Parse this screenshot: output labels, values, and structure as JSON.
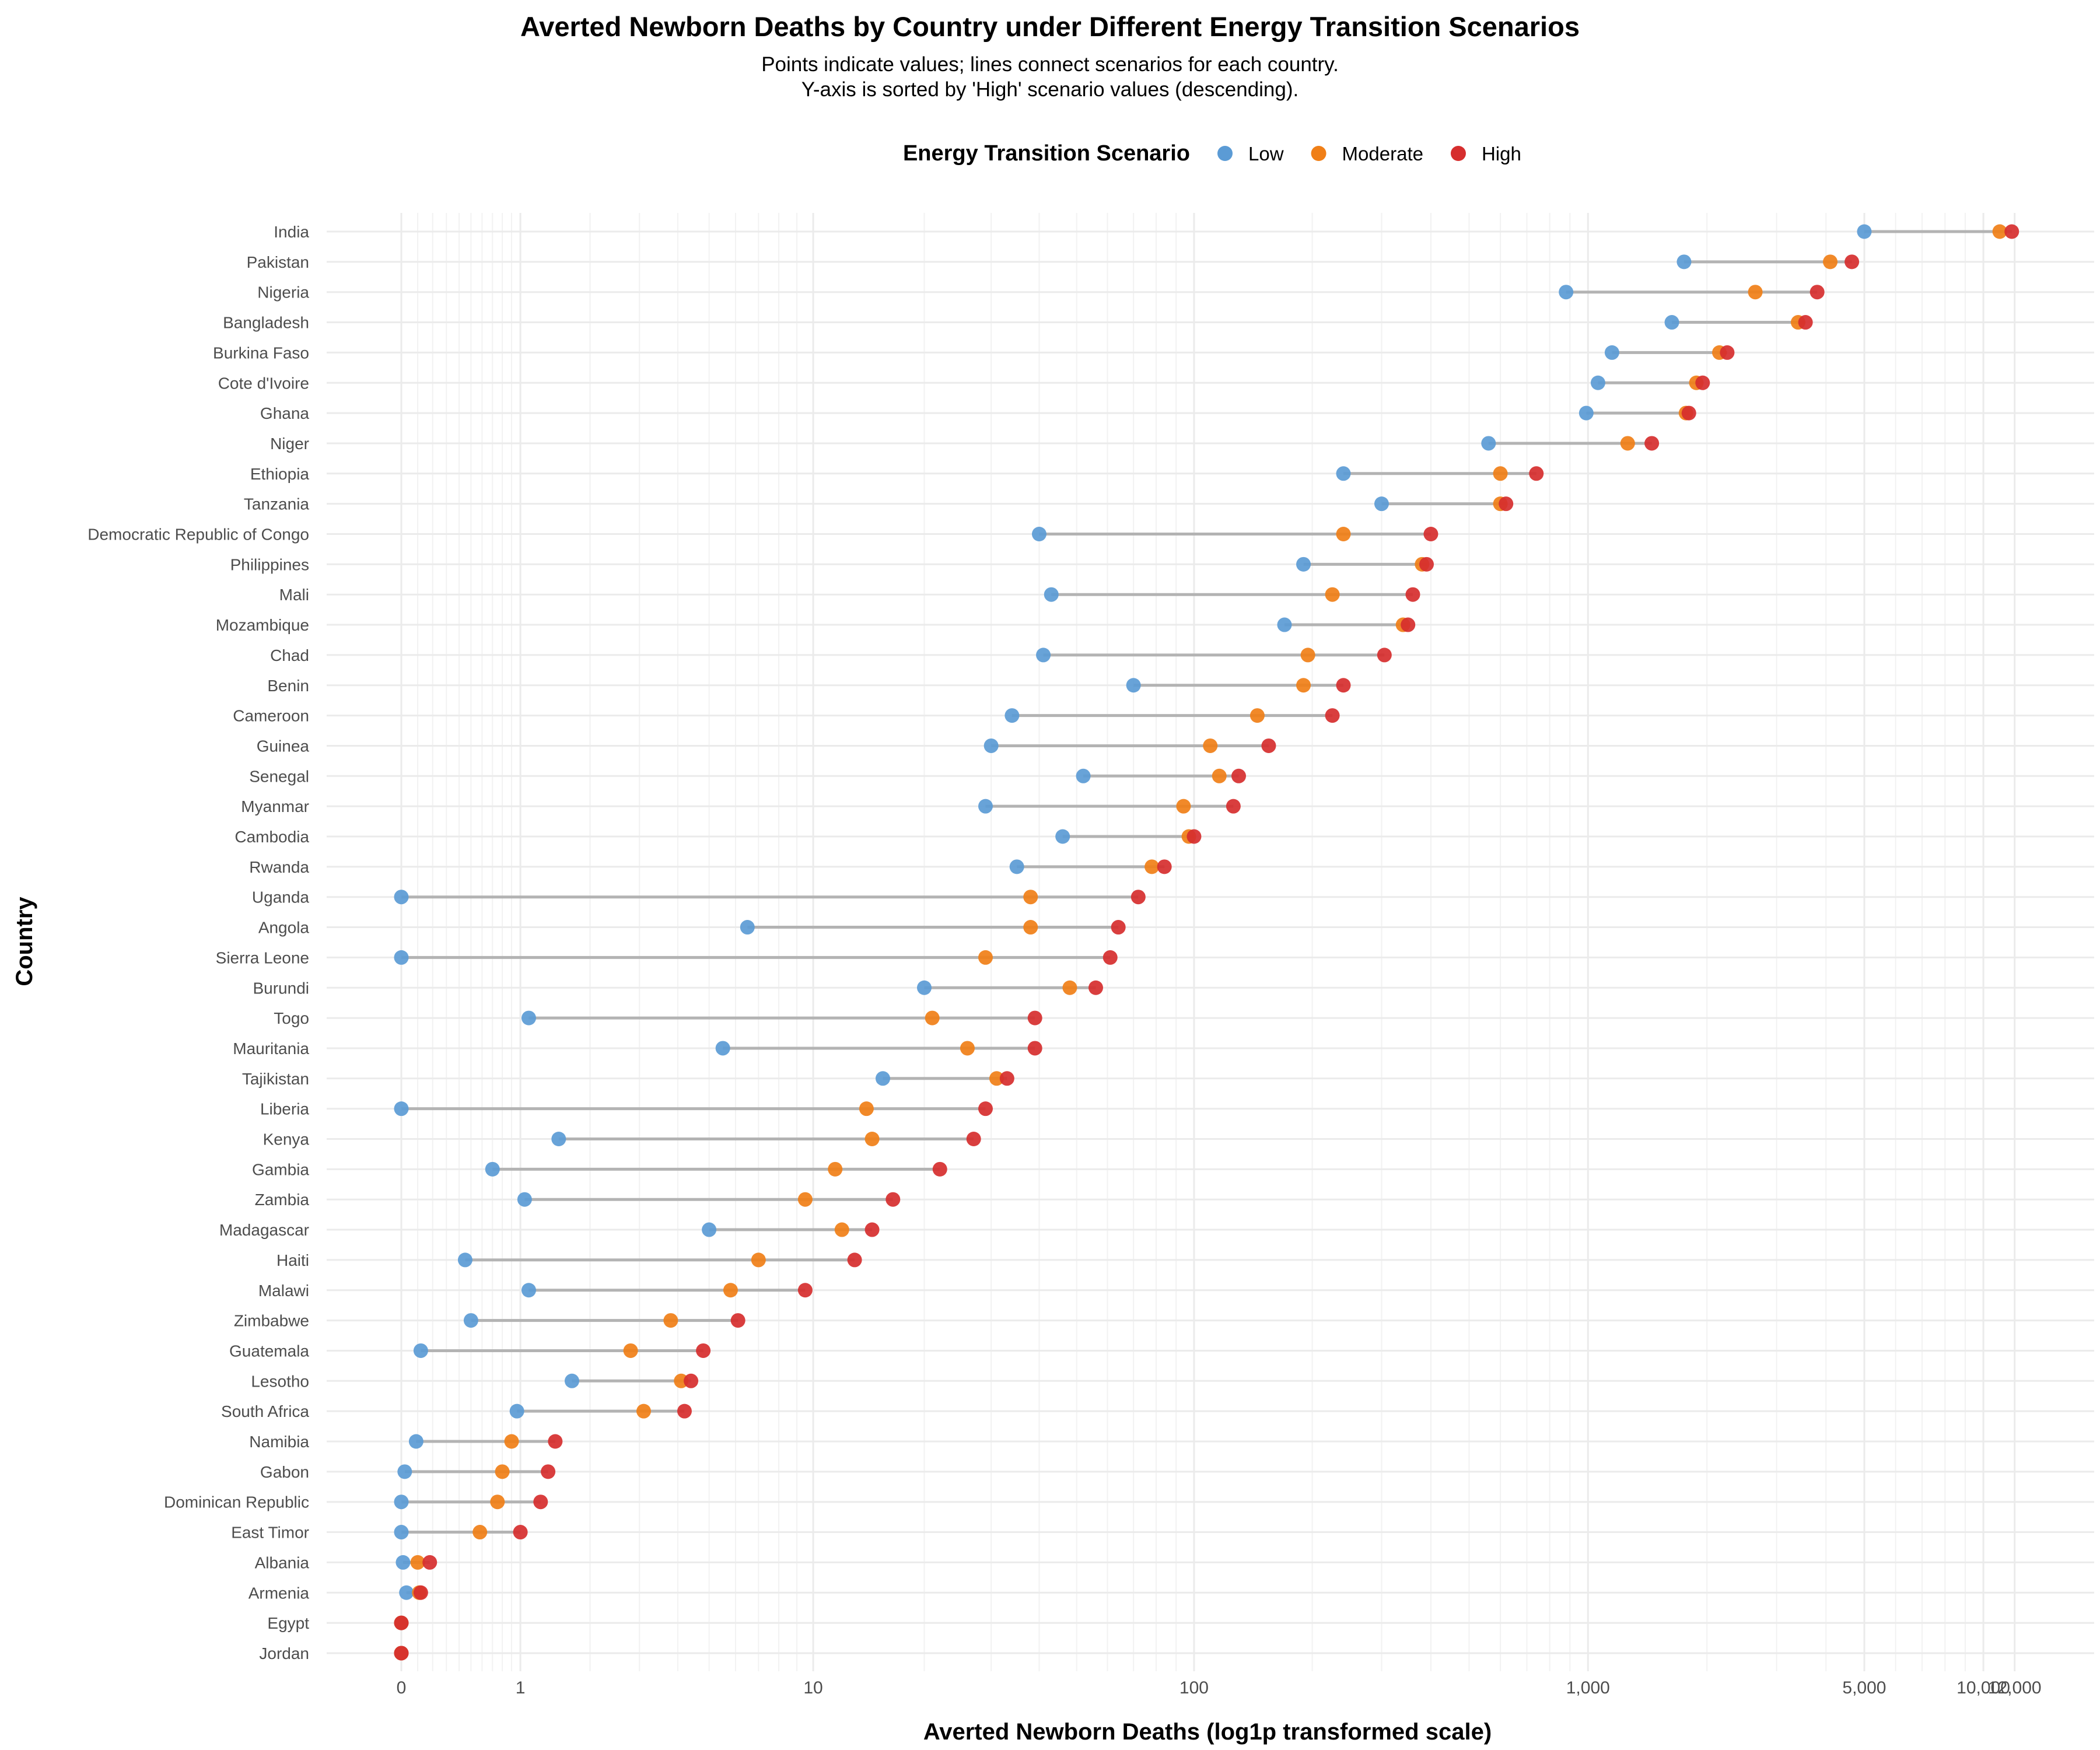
{
  "chart_data": {
    "type": "dumbbell",
    "title": "Averted Newborn Deaths by Country under Different Energy Transition Scenarios",
    "subtitle": [
      "Points indicate values; lines connect scenarios for each country.",
      "Y-axis is sorted by 'High' scenario values (descending)."
    ],
    "xlabel": "Averted Newborn Deaths (log1p transformed scale)",
    "ylabel": "Country",
    "x_scale": "log1p",
    "x_ticks": [
      0,
      1,
      10,
      100,
      1000,
      5000,
      10000,
      12000
    ],
    "x_tick_labels": [
      "0",
      "1",
      "10",
      "100",
      "1,000",
      "5,000",
      "10,000",
      "12,000"
    ],
    "legend": {
      "title": "Energy Transition Scenario",
      "position": "top",
      "items": [
        {
          "name": "Low",
          "color": "#5B9BD5"
        },
        {
          "name": "Moderate",
          "color": "#F07F17"
        },
        {
          "name": "High",
          "color": "#D62E2E"
        }
      ]
    },
    "grid": true,
    "series": [
      {
        "country": "India",
        "low": 5000,
        "moderate": 11000,
        "high": 11800
      },
      {
        "country": "Pakistan",
        "low": 1750,
        "moderate": 4100,
        "high": 4650
      },
      {
        "country": "Nigeria",
        "low": 880,
        "moderate": 2650,
        "high": 3800
      },
      {
        "country": "Bangladesh",
        "low": 1630,
        "moderate": 3400,
        "high": 3550
      },
      {
        "country": "Burkina Faso",
        "low": 1150,
        "moderate": 2150,
        "high": 2250
      },
      {
        "country": "Cote d'Ivoire",
        "low": 1060,
        "moderate": 1880,
        "high": 1950
      },
      {
        "country": "Ghana",
        "low": 990,
        "moderate": 1770,
        "high": 1800
      },
      {
        "country": "Niger",
        "low": 560,
        "moderate": 1260,
        "high": 1450
      },
      {
        "country": "Ethiopia",
        "low": 240,
        "moderate": 600,
        "high": 740
      },
      {
        "country": "Tanzania",
        "low": 300,
        "moderate": 600,
        "high": 620
      },
      {
        "country": "Democratic Republic of Congo",
        "low": 40,
        "moderate": 240,
        "high": 400
      },
      {
        "country": "Philippines",
        "low": 190,
        "moderate": 380,
        "high": 390
      },
      {
        "country": "Mali",
        "low": 43,
        "moderate": 225,
        "high": 360
      },
      {
        "country": "Mozambique",
        "low": 170,
        "moderate": 340,
        "high": 350
      },
      {
        "country": "Chad",
        "low": 41,
        "moderate": 195,
        "high": 305
      },
      {
        "country": "Benin",
        "low": 70,
        "moderate": 190,
        "high": 240
      },
      {
        "country": "Cameroon",
        "low": 34,
        "moderate": 145,
        "high": 225
      },
      {
        "country": "Guinea",
        "low": 30,
        "moderate": 110,
        "high": 155
      },
      {
        "country": "Senegal",
        "low": 52,
        "moderate": 116,
        "high": 130
      },
      {
        "country": "Myanmar",
        "low": 29,
        "moderate": 94,
        "high": 126
      },
      {
        "country": "Cambodia",
        "low": 46,
        "moderate": 97,
        "high": 100
      },
      {
        "country": "Rwanda",
        "low": 35,
        "moderate": 78,
        "high": 84
      },
      {
        "country": "Uganda",
        "low": 0,
        "moderate": 38,
        "high": 72
      },
      {
        "country": "Angola",
        "low": 6.5,
        "moderate": 38,
        "high": 64
      },
      {
        "country": "Sierra Leone",
        "low": 0,
        "moderate": 29,
        "high": 61
      },
      {
        "country": "Burundi",
        "low": 20,
        "moderate": 48,
        "high": 56
      },
      {
        "country": "Togo",
        "low": 1.1,
        "moderate": 21,
        "high": 39
      },
      {
        "country": "Mauritania",
        "low": 5.5,
        "moderate": 26,
        "high": 39
      },
      {
        "country": "Tajikistan",
        "low": 15.5,
        "moderate": 31,
        "high": 33
      },
      {
        "country": "Liberia",
        "low": 0,
        "moderate": 14,
        "high": 29
      },
      {
        "country": "Kenya",
        "low": 1.5,
        "moderate": 14.5,
        "high": 27
      },
      {
        "country": "Gambia",
        "low": 0.7,
        "moderate": 11.5,
        "high": 22
      },
      {
        "country": "Zambia",
        "low": 1.05,
        "moderate": 9.5,
        "high": 16.5
      },
      {
        "country": "Madagascar",
        "low": 5,
        "moderate": 12,
        "high": 14.5
      },
      {
        "country": "Haiti",
        "low": 0.45,
        "moderate": 7,
        "high": 13
      },
      {
        "country": "Malawi",
        "low": 1.1,
        "moderate": 5.8,
        "high": 9.5
      },
      {
        "country": "Zimbabwe",
        "low": 0.5,
        "moderate": 3.8,
        "high": 6.1
      },
      {
        "country": "Guatemala",
        "low": 0.12,
        "moderate": 2.8,
        "high": 4.8
      },
      {
        "country": "Lesotho",
        "low": 1.7,
        "moderate": 4.1,
        "high": 4.4
      },
      {
        "country": "South Africa",
        "low": 0.96,
        "moderate": 3.1,
        "high": 4.2
      },
      {
        "country": "Namibia",
        "low": 0.09,
        "moderate": 0.9,
        "high": 1.45
      },
      {
        "country": "Gabon",
        "low": 0.02,
        "moderate": 0.8,
        "high": 1.35
      },
      {
        "country": "Dominican Republic",
        "low": 0,
        "moderate": 0.75,
        "high": 1.25
      },
      {
        "country": "East Timor",
        "low": 0,
        "moderate": 0.58,
        "high": 1.0
      },
      {
        "country": "Albania",
        "low": 0.01,
        "moderate": 0.1,
        "high": 0.18
      },
      {
        "country": "Armenia",
        "low": 0.03,
        "moderate": 0.11,
        "high": 0.12
      },
      {
        "country": "Egypt",
        "low": 0,
        "moderate": 0,
        "high": 0
      },
      {
        "country": "Jordan",
        "low": 0,
        "moderate": 0,
        "high": 0
      }
    ]
  }
}
